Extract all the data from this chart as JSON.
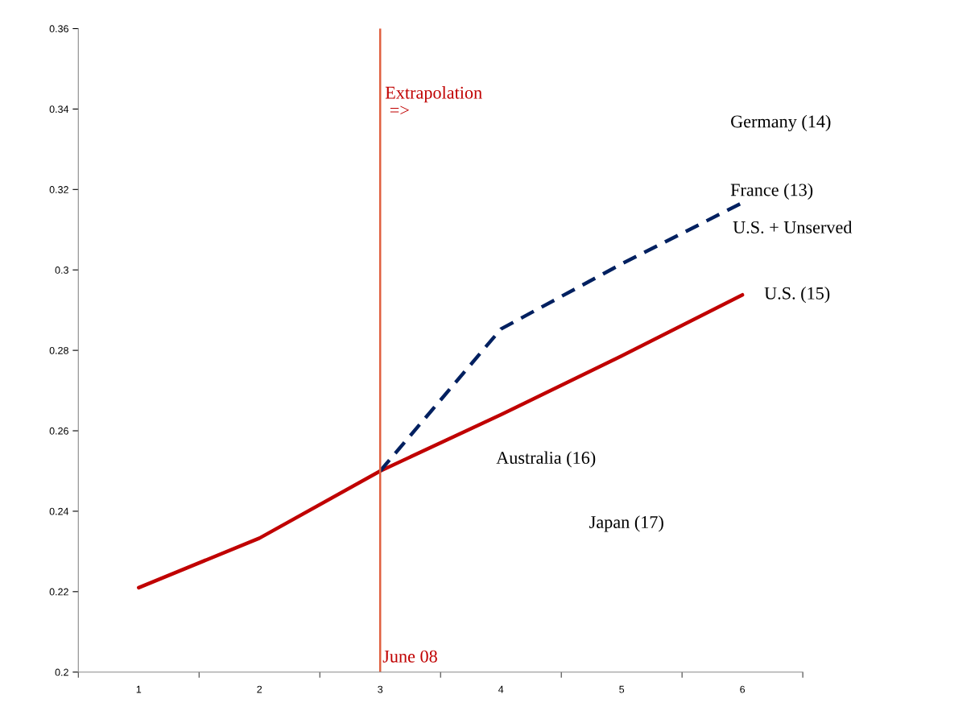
{
  "chart_data": {
    "type": "line",
    "categories": [
      "1",
      "2",
      "3",
      "4",
      "5",
      "6"
    ],
    "series": [
      {
        "name": "U.S. (15)",
        "color": "#c00000",
        "line_style": "solid",
        "values": [
          0.221,
          0.2333,
          0.25,
          0.264,
          0.2786,
          0.2938
        ]
      },
      {
        "name": "U.S. + Unserved",
        "color": "#002060",
        "line_style": "dashed",
        "values": [
          null,
          null,
          0.25,
          0.2853,
          0.3015,
          0.3167
        ]
      }
    ],
    "ylim": [
      0.2,
      0.36
    ],
    "yticks": [
      0.2,
      0.22,
      0.24,
      0.26,
      0.28,
      0.3,
      0.32,
      0.34,
      0.36
    ],
    "ref_lines": [
      {
        "axis": "x",
        "value": "3",
        "label": "June 08",
        "color": "#e06040"
      }
    ],
    "annotations": [
      "Extrapolation\n =>",
      "Germany (14)",
      "France (13)",
      "Australia (16)",
      "Japan (17)"
    ],
    "grid": false,
    "legend": false,
    "marker": "none"
  }
}
